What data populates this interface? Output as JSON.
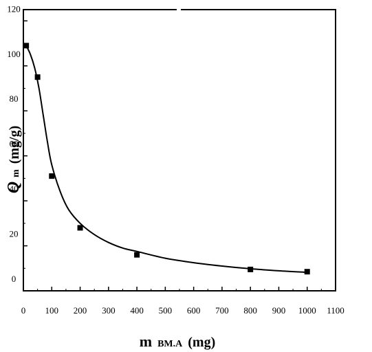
{
  "chart_data": {
    "type": "scatter",
    "title": "",
    "xlabel": {
      "main": "m",
      "sub": "BM.A",
      "unit": "(mg)"
    },
    "ylabel": {
      "main": "Q",
      "sub": "m",
      "unit": "(mg/g)"
    },
    "xlim": [
      0,
      1100
    ],
    "ylim": [
      0,
      125
    ],
    "xticks": [
      0,
      100,
      200,
      300,
      400,
      500,
      600,
      700,
      800,
      900,
      1000,
      1100
    ],
    "yticks": [
      0,
      20,
      40,
      60,
      80,
      100,
      120
    ],
    "grid": false,
    "legend": "none",
    "series": [
      {
        "kind": "points",
        "x": [
          10,
          50,
          100,
          200,
          400,
          800,
          1000
        ],
        "y": [
          109,
          95,
          51,
          28,
          16,
          9.5,
          8.5
        ]
      },
      {
        "kind": "fit-line",
        "x": [
          10,
          25,
          40,
          55,
          70,
          85,
          100,
          130,
          160,
          200,
          250,
          300,
          350,
          400,
          500,
          600,
          700,
          800,
          900,
          1000
        ],
        "y": [
          109,
          105,
          99,
          90,
          78,
          66,
          56,
          44,
          36,
          30,
          25,
          21.5,
          19,
          17.5,
          14.5,
          12.5,
          11,
          9.8,
          8.9,
          8.2
        ]
      }
    ]
  }
}
